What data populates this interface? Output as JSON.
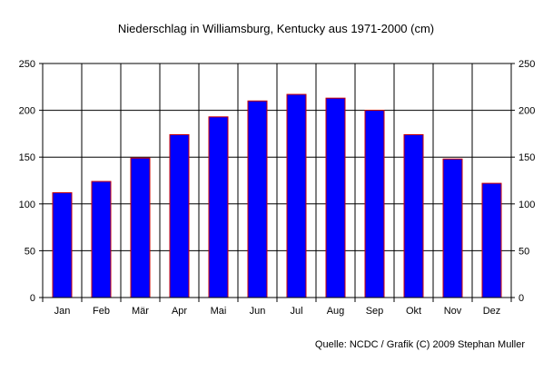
{
  "chart_data": {
    "type": "bar",
    "title": "Niederschlag in Williamsburg, Kentucky aus 1971-2000 (cm)",
    "xlabel": "",
    "ylabel": "",
    "categories": [
      "Jan",
      "Feb",
      "Mär",
      "Apr",
      "Mai",
      "Jun",
      "Jul",
      "Aug",
      "Sep",
      "Okt",
      "Nov",
      "Dez"
    ],
    "values": [
      112,
      124,
      149,
      174,
      193,
      210,
      217,
      213,
      200,
      174,
      148,
      122
    ],
    "ylim": [
      0,
      250
    ],
    "yticks": [
      0,
      50,
      100,
      150,
      200,
      250
    ],
    "ytick_labels": [
      "0",
      "50",
      "100",
      "150",
      "200",
      "250"
    ],
    "grid": true,
    "y_axis_both_sides": true,
    "bar_color": "#0000ff",
    "bar_edge_color": "#cc0000",
    "source_note": "Quelle: NCDC / Grafik (C) 2009 Stephan Muller"
  }
}
